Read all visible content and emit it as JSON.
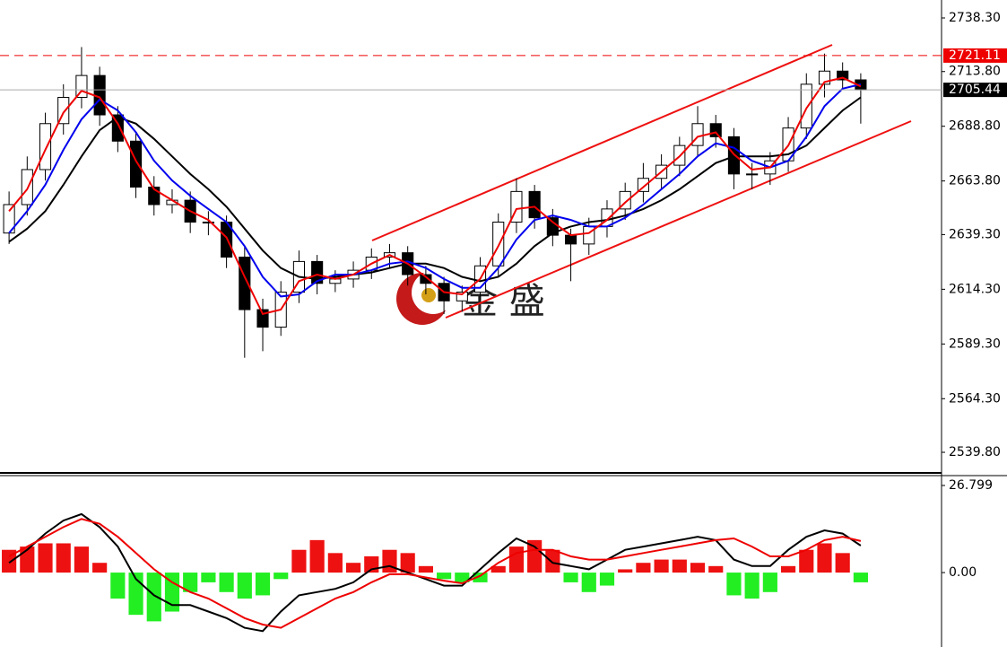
{
  "watermark": "金 盛",
  "chart_data": [
    {
      "type": "candlestick",
      "ylim": [
        2531.2,
        2746.5
      ],
      "yticks": [
        {
          "value": 2738.3,
          "label": "2738.30"
        },
        {
          "value": 2713.8,
          "label": "2713.80"
        },
        {
          "value": 2688.8,
          "label": "2688.80"
        },
        {
          "value": 2663.8,
          "label": "2663.80"
        },
        {
          "value": 2639.3,
          "label": "2639.30"
        },
        {
          "value": 2614.3,
          "label": "2614.30"
        },
        {
          "value": 2589.3,
          "label": "2589.30"
        },
        {
          "value": 2564.3,
          "label": "2564.30"
        },
        {
          "value": 2539.8,
          "label": "2539.80"
        }
      ],
      "open": [
        2640,
        2653,
        2669,
        2690,
        2702,
        2712,
        2694,
        2682,
        2661,
        2653,
        2655,
        2645,
        2645,
        2629,
        2605,
        2597,
        2613,
        2627,
        2617,
        2619,
        2623,
        2629,
        2631,
        2621,
        2617,
        2609,
        2613,
        2625,
        2645,
        2659,
        2647,
        2639,
        2635,
        2643,
        2651,
        2659,
        2665,
        2671,
        2680,
        2690,
        2684,
        2667,
        2667,
        2673,
        2688,
        2708,
        2714,
        2710
      ],
      "high": [
        2659,
        2675,
        2695,
        2708,
        2725,
        2716,
        2698,
        2686,
        2666,
        2660,
        2659,
        2650,
        2648,
        2634,
        2610,
        2618,
        2632,
        2630,
        2623,
        2627,
        2633,
        2635,
        2634,
        2625,
        2620,
        2616,
        2629,
        2649,
        2665,
        2662,
        2651,
        2642,
        2647,
        2655,
        2663,
        2672,
        2676,
        2684,
        2698,
        2694,
        2688,
        2672,
        2677,
        2693,
        2713,
        2722,
        2718,
        2713
      ],
      "low": [
        2635,
        2648,
        2664,
        2685,
        2697,
        2689,
        2677,
        2656,
        2648,
        2649,
        2640,
        2639,
        2624,
        2583,
        2586,
        2593,
        2608,
        2612,
        2613,
        2615,
        2619,
        2624,
        2616,
        2612,
        2603,
        2604,
        2609,
        2620,
        2640,
        2642,
        2634,
        2618,
        2630,
        2638,
        2646,
        2654,
        2660,
        2666,
        2675,
        2679,
        2660,
        2660,
        2662,
        2668,
        2683,
        2702,
        2706,
        2690
      ],
      "close": [
        2653,
        2669,
        2690,
        2702,
        2712,
        2694,
        2682,
        2661,
        2653,
        2655,
        2645,
        2645,
        2629,
        2605,
        2597,
        2613,
        2627,
        2617,
        2619,
        2623,
        2629,
        2631,
        2621,
        2617,
        2609,
        2613,
        2625,
        2645,
        2659,
        2647,
        2639,
        2635,
        2643,
        2651,
        2659,
        2665,
        2671,
        2680,
        2690,
        2684,
        2667,
        2667,
        2673,
        2688,
        2708,
        2714,
        2710,
        2705.44
      ],
      "lines": [
        {
          "color": "#000000",
          "values": [
            2636,
            2642,
            2650,
            2662,
            2675,
            2687,
            2693,
            2690,
            2683,
            2675,
            2667,
            2660,
            2652,
            2642,
            2632,
            2624,
            2620,
            2619,
            2620,
            2621,
            2622,
            2624,
            2626,
            2626,
            2624,
            2620,
            2618,
            2620,
            2626,
            2634,
            2640,
            2643,
            2645,
            2646,
            2648,
            2651,
            2655,
            2660,
            2666,
            2672,
            2675,
            2675,
            2675,
            2676,
            2680,
            2688,
            2696,
            2702
          ]
        },
        {
          "color": "#0000ee",
          "values": [
            2640,
            2650,
            2662,
            2678,
            2692,
            2701,
            2696,
            2686,
            2673,
            2664,
            2657,
            2651,
            2645,
            2634,
            2620,
            2611,
            2612,
            2618,
            2621,
            2621,
            2623,
            2626,
            2627,
            2624,
            2619,
            2615,
            2615,
            2624,
            2637,
            2646,
            2648,
            2646,
            2643,
            2643,
            2647,
            2653,
            2660,
            2667,
            2675,
            2681,
            2679,
            2673,
            2670,
            2673,
            2684,
            2698,
            2706,
            2708
          ]
        },
        {
          "color": "#ee0000",
          "values": [
            2650,
            2660,
            2678,
            2695,
            2705,
            2702,
            2690,
            2673,
            2660,
            2655,
            2650,
            2646,
            2638,
            2620,
            2603,
            2605,
            2618,
            2621,
            2619,
            2621,
            2626,
            2630,
            2626,
            2620,
            2613,
            2612,
            2619,
            2634,
            2651,
            2652,
            2645,
            2639,
            2640,
            2646,
            2654,
            2661,
            2668,
            2675,
            2684,
            2686,
            2676,
            2669,
            2670,
            2680,
            2697,
            2709,
            2711,
            2707
          ]
        }
      ],
      "price_lines": [
        {
          "value": 2721.11,
          "color": "#ee0000",
          "dashed": true
        },
        {
          "value": 2705.44,
          "color": "#000000",
          "dashed": false
        }
      ]
    },
    {
      "type": "macd",
      "ylim": [
        -22.9,
        29.84
      ],
      "yticks": [
        {
          "value": 26.799,
          "label": "26.799"
        },
        {
          "value": 0,
          "label": "0.00"
        }
      ],
      "histogram": {
        "positive_color": "#ee1111",
        "negative_color": "#22ee22",
        "values": [
          7,
          8,
          9,
          9,
          8,
          3,
          -8,
          -13,
          -15,
          -12,
          -6,
          -3,
          -6,
          -8,
          -7,
          -2,
          7,
          10,
          6,
          3,
          5,
          7,
          6,
          2,
          -2,
          -3,
          -3,
          2,
          8,
          10,
          7,
          -3,
          -6,
          -4,
          1,
          3,
          4,
          4,
          3,
          2,
          -7,
          -8,
          -6,
          2,
          7,
          9,
          6,
          -3
        ]
      },
      "lines": [
        {
          "color": "#000000",
          "values": [
            3,
            7,
            12,
            16,
            18,
            14,
            8,
            -2,
            -7,
            -10,
            -10,
            -12,
            -14,
            -17,
            -18,
            -12,
            -7,
            -6,
            -5,
            -3,
            1,
            2,
            0,
            -2,
            -4,
            -4,
            1,
            6,
            10.5,
            8,
            3,
            2,
            1,
            4,
            7,
            8,
            9,
            10,
            11,
            10,
            4,
            2,
            2,
            7,
            11,
            13,
            12,
            8.3
          ]
        },
        {
          "color": "#ee0000",
          "values": [
            5,
            8,
            11,
            14,
            16.5,
            15,
            11,
            6,
            1,
            -3,
            -6,
            -8,
            -11,
            -14,
            -16,
            -17,
            -14,
            -11,
            -8,
            -6,
            -3,
            -0.5,
            -0.5,
            -1.5,
            -2.5,
            -3.3,
            -1,
            3,
            6,
            7,
            7,
            5,
            4,
            4,
            5,
            6,
            7,
            8,
            9,
            10,
            10.5,
            8,
            5,
            5,
            7,
            10,
            11,
            9.7
          ]
        }
      ]
    }
  ]
}
